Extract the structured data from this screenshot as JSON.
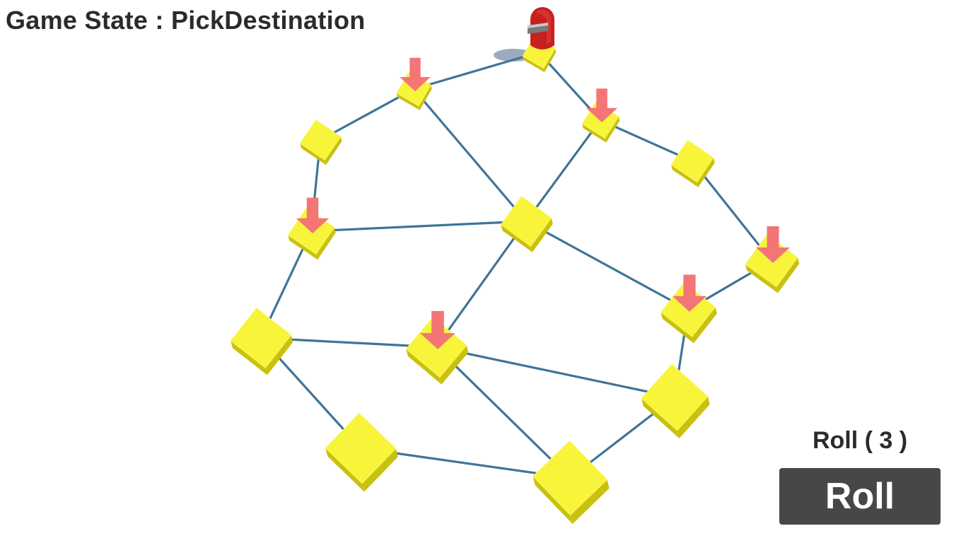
{
  "hud": {
    "game_state": "Game State : PickDestination",
    "roll_count": "Roll ( 3 )",
    "roll_button": "Roll"
  },
  "colors": {
    "tile_top": "#f7f43a",
    "tile_side": "#c9c10f",
    "path": "#3f7598",
    "arrow": "#f47575",
    "player": "#c81f1f",
    "button_bg": "#474747"
  },
  "board": {
    "tiles": [
      {
        "id": "t1",
        "highlighted": false,
        "occupied": true
      },
      {
        "id": "t2",
        "highlighted": true,
        "occupied": false
      },
      {
        "id": "t3",
        "highlighted": true,
        "occupied": false
      },
      {
        "id": "t4",
        "highlighted": false,
        "occupied": false
      },
      {
        "id": "t5",
        "highlighted": false,
        "occupied": false
      },
      {
        "id": "t6",
        "highlighted": true,
        "occupied": false
      },
      {
        "id": "t7",
        "highlighted": false,
        "occupied": false
      },
      {
        "id": "t8",
        "highlighted": true,
        "occupied": false
      },
      {
        "id": "t9",
        "highlighted": true,
        "occupied": false
      },
      {
        "id": "t10",
        "highlighted": false,
        "occupied": false
      },
      {
        "id": "t11",
        "highlighted": true,
        "occupied": false
      },
      {
        "id": "t12",
        "highlighted": false,
        "occupied": false
      },
      {
        "id": "t13",
        "highlighted": false,
        "occupied": false
      },
      {
        "id": "t14",
        "highlighted": false,
        "occupied": false
      }
    ],
    "connections": [
      [
        "t1",
        "t2"
      ],
      [
        "t1",
        "t3"
      ],
      [
        "t2",
        "t4"
      ],
      [
        "t2",
        "t7"
      ],
      [
        "t3",
        "t5"
      ],
      [
        "t3",
        "t7"
      ],
      [
        "t4",
        "t6"
      ],
      [
        "t5",
        "t8"
      ],
      [
        "t6",
        "t7"
      ],
      [
        "t6",
        "t10"
      ],
      [
        "t7",
        "t9"
      ],
      [
        "t7",
        "t11"
      ],
      [
        "t8",
        "t9"
      ],
      [
        "t9",
        "t12"
      ],
      [
        "t10",
        "t11"
      ],
      [
        "t10",
        "t13"
      ],
      [
        "t11",
        "t12"
      ],
      [
        "t11",
        "t14"
      ],
      [
        "t12",
        "t14"
      ],
      [
        "t13",
        "t14"
      ]
    ]
  }
}
